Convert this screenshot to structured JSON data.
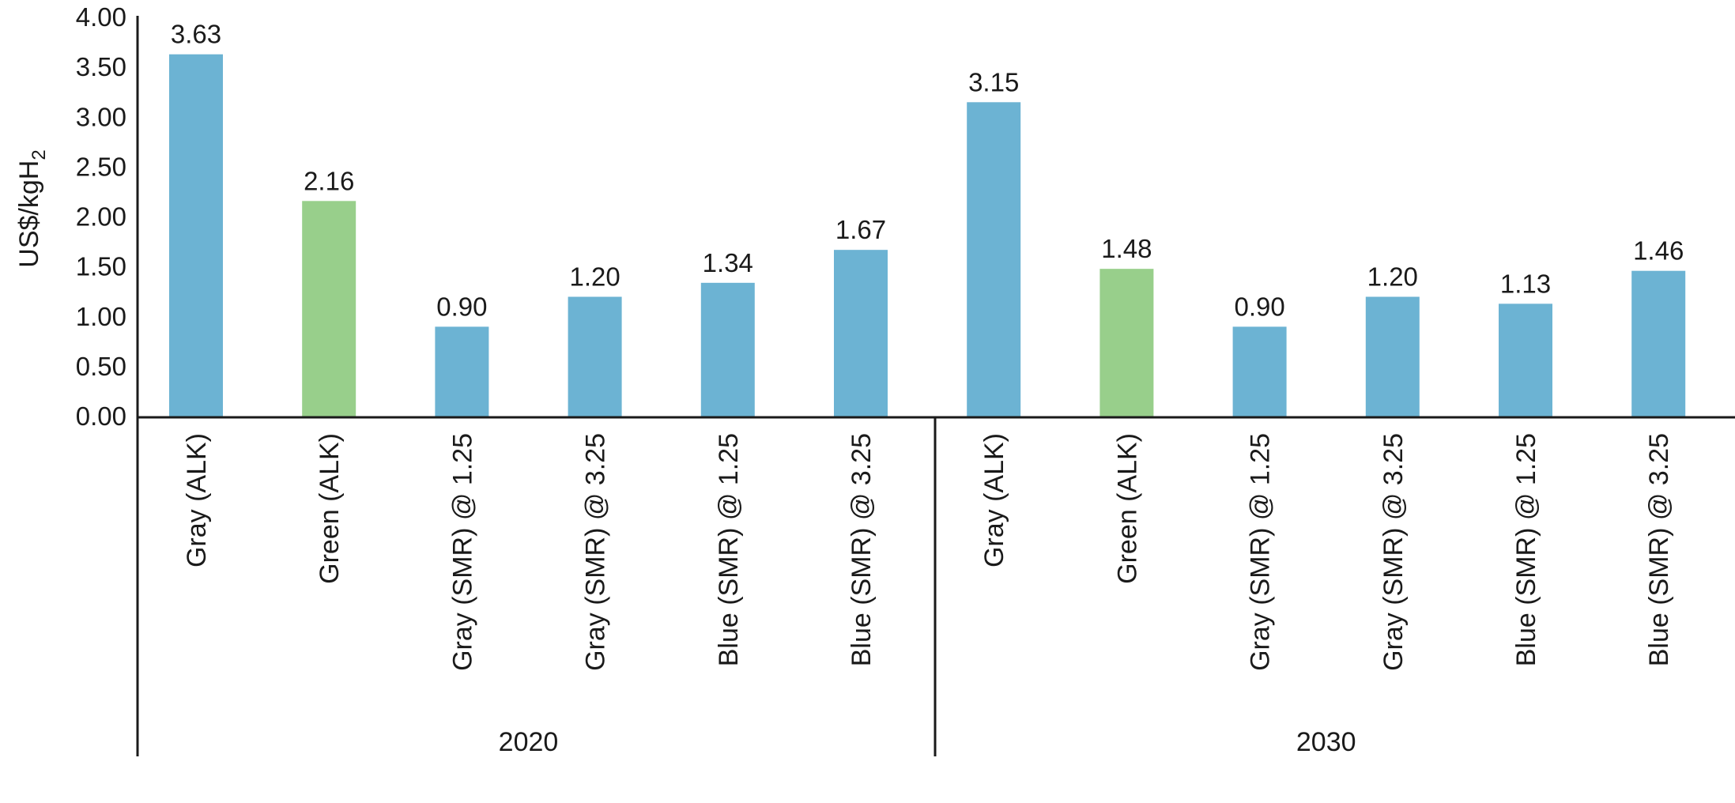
{
  "chart_data": {
    "type": "bar",
    "title": "",
    "xlabel": "",
    "ylabel": "US$/kgH",
    "ylabel_subscript": "2",
    "ylim": [
      0,
      4.0
    ],
    "yticks": [
      "0.00",
      "0.50",
      "1.00",
      "1.50",
      "2.00",
      "2.50",
      "3.00",
      "3.50",
      "4.00"
    ],
    "grid": false,
    "legend": "none",
    "colors": {
      "blue_bar": "#6cb3d3",
      "green_bar": "#98cf8b",
      "axis": "#1a1a1a"
    },
    "groups": [
      {
        "label": "2020",
        "bars": [
          {
            "category": "Gray (ALK)",
            "value": 3.63,
            "label": "3.63",
            "color": "blue_bar"
          },
          {
            "category": "Green (ALK)",
            "value": 2.16,
            "label": "2.16",
            "color": "green_bar"
          },
          {
            "category": "Gray (SMR) @ 1.25",
            "value": 0.9,
            "label": "0.90",
            "color": "blue_bar"
          },
          {
            "category": "Gray (SMR) @ 3.25",
            "value": 1.2,
            "label": "1.20",
            "color": "blue_bar"
          },
          {
            "category": "Blue (SMR) @ 1.25",
            "value": 1.34,
            "label": "1.34",
            "color": "blue_bar"
          },
          {
            "category": "Blue (SMR) @ 3.25",
            "value": 1.67,
            "label": "1.67",
            "color": "blue_bar"
          }
        ]
      },
      {
        "label": "2030",
        "bars": [
          {
            "category": "Gray (ALK)",
            "value": 3.15,
            "label": "3.15",
            "color": "blue_bar"
          },
          {
            "category": "Green (ALK)",
            "value": 1.48,
            "label": "1.48",
            "color": "green_bar"
          },
          {
            "category": "Gray (SMR) @ 1.25",
            "value": 0.9,
            "label": "0.90",
            "color": "blue_bar"
          },
          {
            "category": "Gray (SMR) @ 3.25",
            "value": 1.2,
            "label": "1.20",
            "color": "blue_bar"
          },
          {
            "category": "Blue (SMR) @ 1.25",
            "value": 1.13,
            "label": "1.13",
            "color": "blue_bar"
          },
          {
            "category": "Blue (SMR) @ 3.25",
            "value": 1.46,
            "label": "1.46",
            "color": "blue_bar"
          }
        ]
      }
    ]
  }
}
